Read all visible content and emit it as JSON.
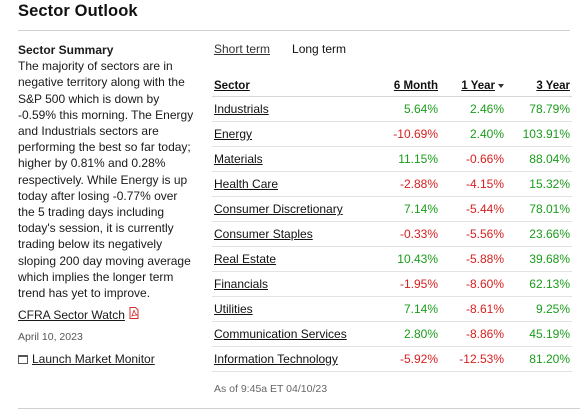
{
  "header": {
    "title": "Sector Outlook"
  },
  "summary": {
    "heading": "Sector Summary",
    "text": "The majority of sectors are in negative territory along with the S&P 500 which is down by -0.59% this morning. The Energy and Industrials sectors are performing the best so far today; higher by 0.81% and 0.28% respectively. While Energy is up today after losing -0.77% over the 5 trading days including today's session, it is currently trading below its negatively sloping 200 day moving average which implies the longer term trend has yet to improve.",
    "cfra_link": "CFRA Sector Watch",
    "date": "April 10, 2023",
    "launch_link": "Launch Market Monitor"
  },
  "tabs": {
    "short_term": "Short term",
    "long_term": "Long term",
    "active": "long_term"
  },
  "table": {
    "headers": {
      "sector": "Sector",
      "six_month": "6 Month",
      "one_year": "1 Year",
      "three_year": "3 Year"
    },
    "sort_column": "one_year",
    "rows": [
      {
        "sector": "Industrials",
        "six_month": "5.64%",
        "one_year": "2.46%",
        "three_year": "78.79%"
      },
      {
        "sector": "Energy",
        "six_month": "-10.69%",
        "one_year": "2.40%",
        "three_year": "103.91%"
      },
      {
        "sector": "Materials",
        "six_month": "11.15%",
        "one_year": "-0.66%",
        "three_year": "88.04%"
      },
      {
        "sector": "Health Care",
        "six_month": "-2.88%",
        "one_year": "-4.15%",
        "three_year": "15.32%"
      },
      {
        "sector": "Consumer Discretionary",
        "six_month": "7.14%",
        "one_year": "-5.44%",
        "three_year": "78.01%"
      },
      {
        "sector": "Consumer Staples",
        "six_month": "-0.33%",
        "one_year": "-5.56%",
        "three_year": "23.66%"
      },
      {
        "sector": "Real Estate",
        "six_month": "10.43%",
        "one_year": "-5.88%",
        "three_year": "39.68%"
      },
      {
        "sector": "Financials",
        "six_month": "-1.95%",
        "one_year": "-8.60%",
        "three_year": "62.13%"
      },
      {
        "sector": "Utilities",
        "six_month": "7.14%",
        "one_year": "-8.61%",
        "three_year": "9.25%"
      },
      {
        "sector": "Communication Services",
        "six_month": "2.80%",
        "one_year": "-8.86%",
        "three_year": "45.19%"
      },
      {
        "sector": "Information Technology",
        "six_month": "-5.92%",
        "one_year": "-12.53%",
        "three_year": "81.20%"
      }
    ]
  },
  "footer": {
    "as_of": "As of 9:45a ET 04/10/23"
  },
  "colors": {
    "positive": "#1a9c1a",
    "negative": "#d61f1f",
    "pdf": "#d32f2f"
  }
}
